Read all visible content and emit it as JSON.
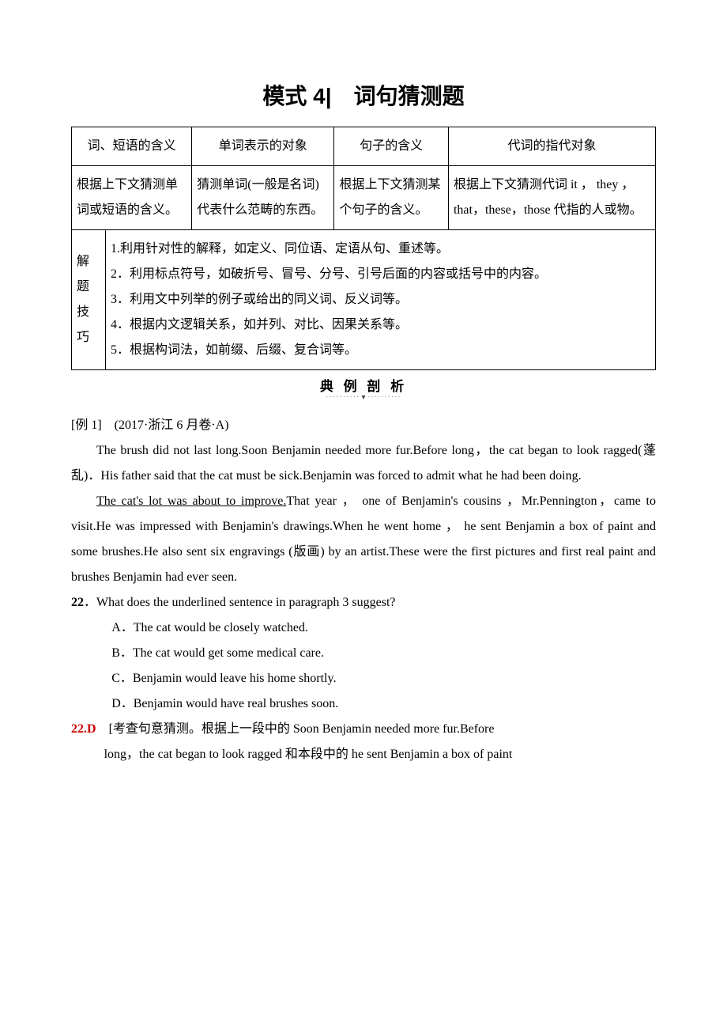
{
  "title": "模式 4|　词句猜测题",
  "table1": {
    "headers": [
      "词、短语的含义",
      "单词表示的对象",
      "句子的含义",
      "代词的指代对象"
    ],
    "row2": [
      "根据上下文猜测单词或短语的含义。",
      "猜测单词(一般是名词)代表什么范畴的东西。",
      "根据上下文猜测某个句子的含义。",
      "根据上下文猜测代词 it ， they ，that，these，those 代指的人或物。"
    ],
    "row3_label": "解题技巧",
    "row3_body": "1.利用针对性的解释，如定义、同位语、定语从句、重述等。\n2．利用标点符号，如破折号、冒号、分号、引号后面的内容或括号中的内容。\n3．利用文中列举的例子或给出的同义词、反义词等。\n4．根据内文逻辑关系，如并列、对比、因果关系等。\n5．根据构词法，如前缀、后缀、复合词等。"
  },
  "divider_label": "典 例 剖 析",
  "example_label": "[例 1]　(2017·浙江 6 月卷·A)",
  "passage": {
    "p1": "The brush did not last long.Soon Benjamin needed more fur.Before long，the cat began to look ragged(蓬乱)．His father said that the cat must be sick.Benjamin was forced to admit what he had been doing.",
    "p2_underlined": "The cat's lot was about to improve.",
    "p2_rest": "That year ， one of Benjamin's cousins ，Mr.Pennington，came to visit.He was impressed with Benjamin's drawings.When he went home ， he sent Benjamin a box of paint and some brushes.He also sent six engravings (版画) by an artist.These were the first pictures and first real paint and brushes Benjamin had ever seen."
  },
  "question": {
    "num": "22",
    "stem": "．What does the underlined sentence in paragraph 3 suggest?",
    "options": [
      "A．The cat would be closely watched.",
      "B．The cat would get some medical care.",
      "C．Benjamin would leave his home shortly.",
      "D．Benjamin would have real brushes soon."
    ]
  },
  "answer": {
    "num_ans": "22.D",
    "body_first": "　[考查句意猜测。根据上一段中的 Soon Benjamin needed more fur.Before",
    "body_cont": "long，the cat began to look ragged 和本段中的 he sent Benjamin a box of paint"
  },
  "colors": {
    "text": "#000000",
    "answer_red": "#d00000",
    "background": "#ffffff",
    "border": "#000000"
  }
}
